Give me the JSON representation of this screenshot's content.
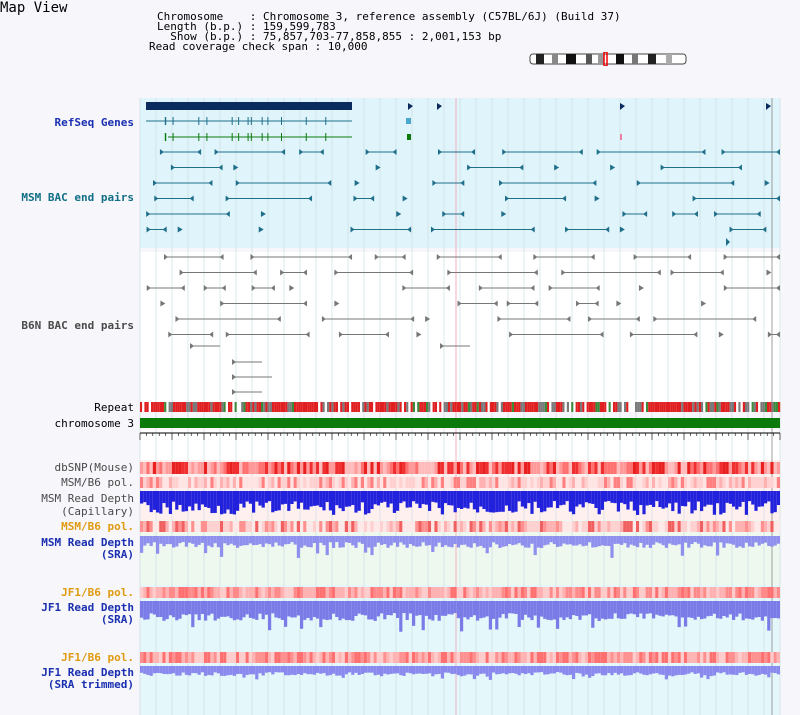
{
  "title": "Map View",
  "header": {
    "line1": "Chromosome    : Chromosome 3, reference assembly (C57BL/6J) (Build 37)",
    "line2": "Length (b.p.) : 159,599,783",
    "line3": "  Show (b.p.) : 75,857,703-77,858,855 : 2,001,153 bp",
    "line4": "Read coverage check span : 10,000"
  },
  "tracks": {
    "refseq": "RefSeq Genes",
    "msm_bac": "MSM BAC end pairs",
    "b6n_bac": "B6N BAC end pairs",
    "repeat": "Repeat",
    "chromosome": "chromosome 3",
    "dbsnp": "dbSNP(Mouse)",
    "msm_b6_pol": "MSM/B6 pol.",
    "msm_depth_cap_1": "MSM Read Depth",
    "msm_depth_cap_2": "(Capillary)",
    "msm_b6_pol2": "MSM/B6 pol.",
    "msm_depth_sra_1": "MSM Read Depth",
    "msm_depth_sra_2": "(SRA)",
    "jf1_b6_pol": "JF1/B6 pol.",
    "jf1_depth_sra_1": "JF1 Read Depth",
    "jf1_depth_sra_2": "(SRA)",
    "jf1_b6_pol2": "JF1/B6 pol.",
    "jf1_depth_trim_1": "JF1 Read Depth",
    "jf1_depth_trim_2": "(SRA trimmed)"
  },
  "axis_ticks": [
    "76000000",
    "76400000",
    "76800000",
    "77200000",
    "77600000"
  ],
  "colors": {
    "refseq_bg": "#e0f4fb",
    "gene_dark": "#0b2a5e",
    "teal": "#1f6f8b",
    "gray": "#777777",
    "chromosome": "#0b7a0b",
    "depth_blue": "#2222dd",
    "depth_light": "#7b7be8",
    "pol_red": "#f03030"
  }
}
